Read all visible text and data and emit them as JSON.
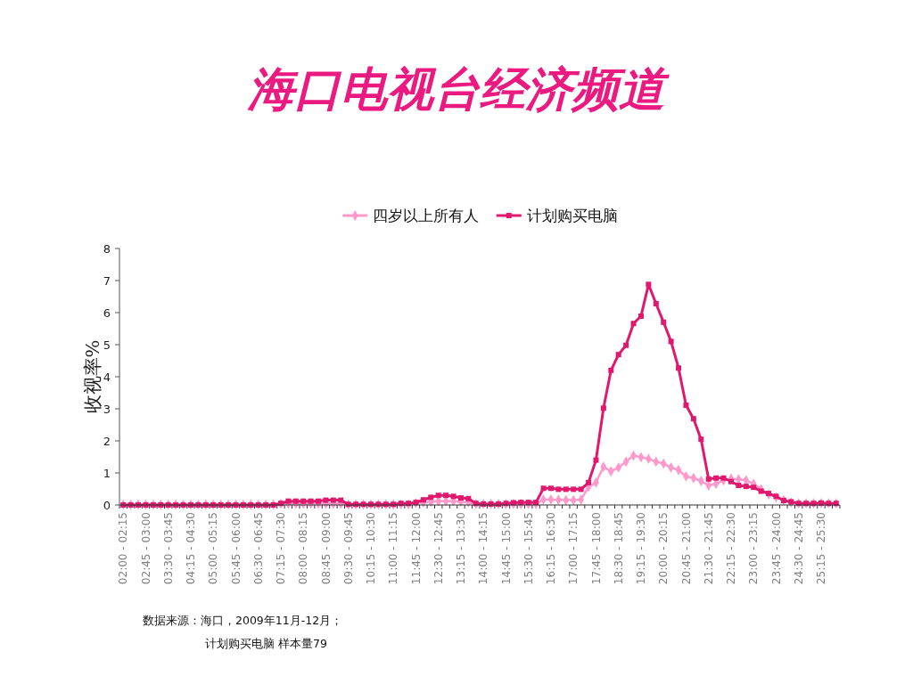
{
  "chart_data": {
    "type": "line",
    "title": "海口电视台经济频道",
    "ylabel": "收视率%",
    "categories": [
      "02:00 - 02:15",
      null,
      null,
      "02:45 - 03:00",
      null,
      null,
      "03:30 - 03:45",
      null,
      null,
      "04:15 - 04:30",
      null,
      null,
      "05:00 - 05:15",
      null,
      null,
      "05:45 - 06:00",
      null,
      null,
      "06:30 - 06:45",
      null,
      null,
      "07:15 - 07:30",
      null,
      null,
      "08:00 - 08:15",
      null,
      null,
      "08:45 - 09:00",
      null,
      null,
      "09:30 - 09:45",
      null,
      null,
      "10:15 - 10:30",
      null,
      null,
      "11:00 - 11:15",
      null,
      null,
      "11:45 - 12:00",
      null,
      null,
      "12:30 - 12:45",
      null,
      null,
      "13:15 - 13:30",
      null,
      null,
      "14:00 - 14:15",
      null,
      null,
      "14:45 - 15:00",
      null,
      null,
      "15:30 - 15:45",
      null,
      null,
      "16:15 - 16:30",
      null,
      null,
      "17:00 - 17:15",
      null,
      null,
      "17:45 - 18:00",
      null,
      null,
      "18:30 - 18:45",
      null,
      null,
      "19:15 - 19:30",
      null,
      null,
      "20:00 - 20:15",
      null,
      null,
      "20:45 - 21:00",
      null,
      null,
      "21:30 - 21:45",
      null,
      null,
      "22:15 - 22:30",
      null,
      null,
      "23:00 - 23:15",
      null,
      null,
      "23:45 - 24:00",
      null,
      null,
      "24:30 - 24:45",
      null,
      null,
      "25:15 - 25:30",
      null,
      null
    ],
    "series": [
      {
        "name": "四岁以上所有人",
        "color": "#ff99cc",
        "marker": "diamond",
        "values": [
          0.01,
          0.01,
          0.01,
          0.01,
          0.01,
          0.01,
          0.01,
          0.01,
          0.01,
          0.01,
          0.01,
          0.01,
          0.01,
          0.01,
          0.01,
          0.01,
          0.01,
          0.01,
          0.01,
          0.01,
          0.01,
          0.04,
          0.04,
          0.04,
          0.04,
          0.04,
          0.04,
          0.04,
          0.04,
          0.04,
          0.02,
          0.02,
          0.02,
          0.02,
          0.02,
          0.02,
          0.02,
          0.02,
          0.02,
          0.06,
          0.08,
          0.1,
          0.12,
          0.12,
          0.12,
          0.1,
          0.08,
          0.03,
          0.03,
          0.03,
          0.03,
          0.03,
          0.03,
          0.03,
          0.03,
          0.03,
          0.17,
          0.17,
          0.16,
          0.15,
          0.15,
          0.17,
          0.56,
          0.7,
          1.19,
          1.05,
          1.17,
          1.35,
          1.54,
          1.49,
          1.44,
          1.35,
          1.29,
          1.17,
          1.09,
          0.89,
          0.84,
          0.75,
          0.61,
          0.66,
          0.77,
          0.82,
          0.8,
          0.77,
          0.66,
          0.49,
          0.33,
          0.24,
          0.15,
          0.08,
          0.05,
          0.05,
          0.05,
          0.05,
          0.05,
          0.05
        ]
      },
      {
        "name": "计划购买电脑",
        "color": "#e0186e",
        "marker": "square",
        "values": [
          0,
          0,
          0,
          0,
          0,
          0,
          0,
          0,
          0,
          0,
          0,
          0,
          0,
          0,
          0,
          0,
          0,
          0,
          0,
          0,
          0,
          0.05,
          0.12,
          0.12,
          0.12,
          0.12,
          0.12,
          0.15,
          0.15,
          0.15,
          0.02,
          0.02,
          0.02,
          0.02,
          0.02,
          0.02,
          0.02,
          0.05,
          0.05,
          0.08,
          0.16,
          0.24,
          0.3,
          0.3,
          0.27,
          0.22,
          0.2,
          0.05,
          0.03,
          0.03,
          0.03,
          0.05,
          0.07,
          0.08,
          0.08,
          0.08,
          0.52,
          0.52,
          0.49,
          0.49,
          0.49,
          0.49,
          0.7,
          1.4,
          3.02,
          4.2,
          4.69,
          4.98,
          5.66,
          5.89,
          6.88,
          6.28,
          5.7,
          5.1,
          4.27,
          3.11,
          2.69,
          2.05,
          0.81,
          0.84,
          0.84,
          0.73,
          0.61,
          0.58,
          0.55,
          0.43,
          0.36,
          0.27,
          0.14,
          0.1,
          0.05,
          0.05,
          0.05,
          0.06,
          0.05,
          0.05
        ]
      }
    ],
    "ylim": [
      0,
      8
    ],
    "yticks": [
      0,
      1,
      2,
      3,
      4,
      5,
      6,
      7,
      8
    ],
    "legend": "top",
    "annotations": [
      "数据来源：海口，2009年11月-12月；",
      "计划购买电脑 样本量79"
    ]
  }
}
